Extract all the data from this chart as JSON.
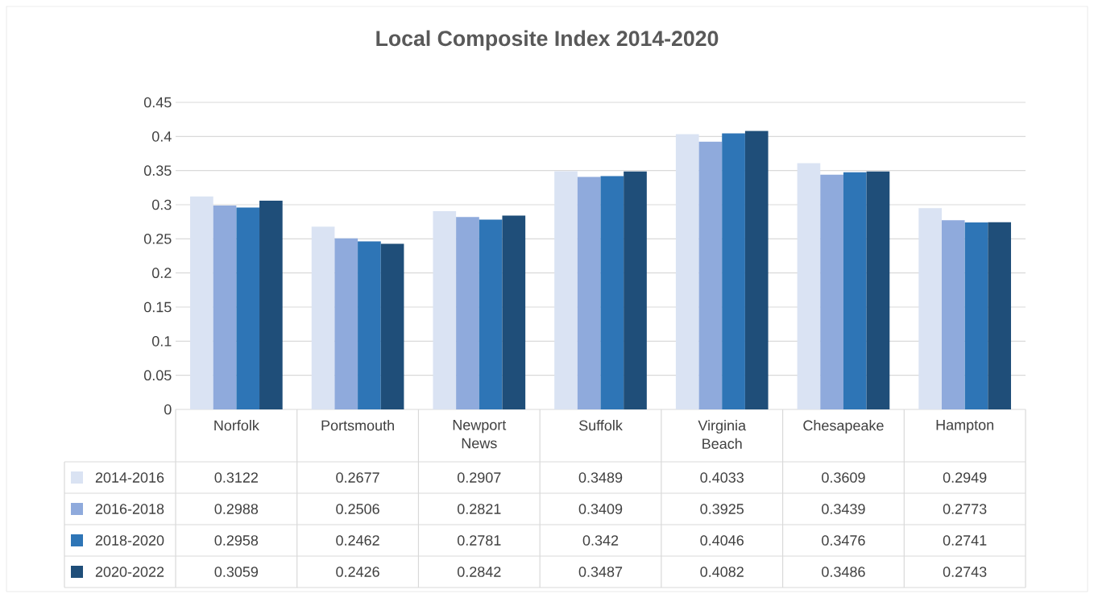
{
  "chart_data": {
    "type": "bar",
    "title": "Local Composite Index 2014-2020",
    "categories": [
      "Norfolk",
      "Portsmouth",
      "Newport News",
      "Suffolk",
      "Virginia Beach",
      "Chesapeake",
      "Hampton"
    ],
    "series": [
      {
        "name": "2014-2016",
        "color": "#dae3f3",
        "values": [
          0.3122,
          0.2677,
          0.2907,
          0.3489,
          0.4033,
          0.3609,
          0.2949
        ]
      },
      {
        "name": "2016-2018",
        "color": "#8faadc",
        "values": [
          0.2988,
          0.2506,
          0.2821,
          0.3409,
          0.3925,
          0.3439,
          0.2773
        ]
      },
      {
        "name": "2018-2020",
        "color": "#2e75b6",
        "values": [
          0.2958,
          0.2462,
          0.2781,
          0.342,
          0.4046,
          0.3476,
          0.2741
        ]
      },
      {
        "name": "2020-2022",
        "color": "#1f4e79",
        "values": [
          0.3059,
          0.2426,
          0.2842,
          0.3487,
          0.4082,
          0.3486,
          0.2743
        ]
      }
    ],
    "ylim": [
      0,
      0.45
    ],
    "yticks": [
      0,
      0.05,
      0.1,
      0.15,
      0.2,
      0.25,
      0.3,
      0.35,
      0.4,
      0.45
    ],
    "grid": "y",
    "legend": "bottom",
    "data_labels": true
  }
}
